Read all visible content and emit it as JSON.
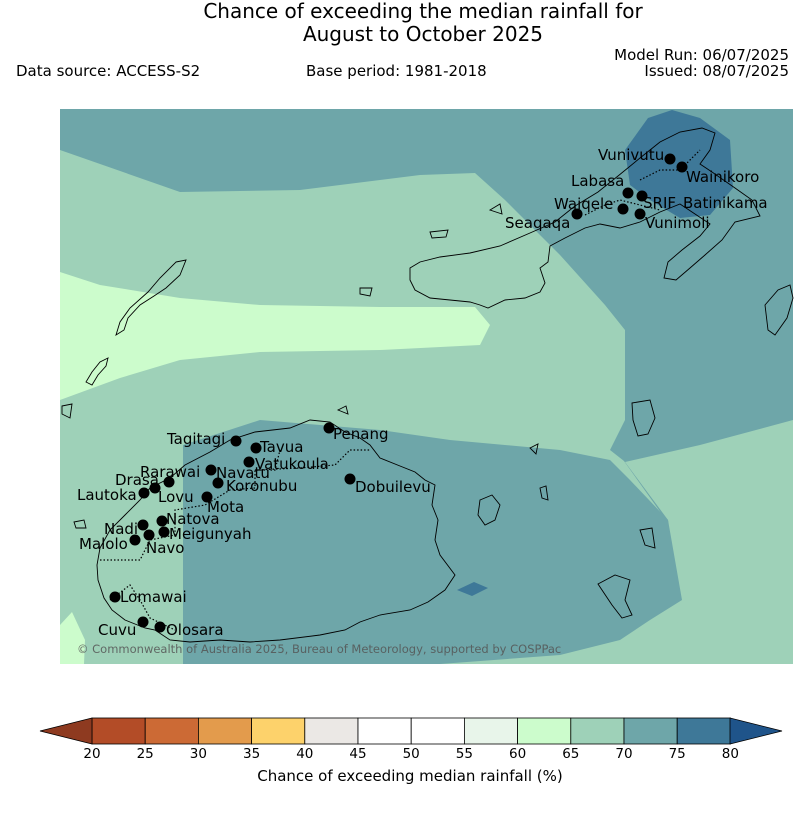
{
  "header": {
    "title_line1": "Chance of exceeding the median rainfall for",
    "title_line2": "August to October 2025",
    "data_source": "Data source: ACCESS-S2",
    "base_period": "Base period: 1981-2018",
    "model_run": "Model Run: 06/07/2025",
    "issued": "Issued: 08/07/2025"
  },
  "map": {
    "copyright": "© Commonwealth of Australia 2025, Bureau of Meteorology, supported by COSPPac",
    "zone_colors": {
      "60-65": "#ccfccc",
      "65-70": "#9ed1b8",
      "70-75": "#6ea6a9",
      "75-80": "#3e7898"
    },
    "stations": [
      "Vunivutu",
      "Wainikoro",
      "Labasa",
      "Waiqele",
      "SRIF",
      "Batinikama",
      "Seaqaqa",
      "Vunimoli",
      "Tagitagi",
      "Tavua",
      "Penang",
      "Vatukoula",
      "Rarawai",
      "Navatu",
      "Drasa",
      "Koronubu",
      "Lautoka",
      "Lovu",
      "Mota",
      "Dobuilevu",
      "Natova",
      "Nadi",
      "Meigunyah",
      "Malolo",
      "Navo",
      "Lomawai",
      "Cuvu",
      "Olosara"
    ]
  },
  "colorbar": {
    "label": "Chance of exceeding median rainfall (%)",
    "ticks": [
      "20",
      "25",
      "30",
      "35",
      "40",
      "45",
      "50",
      "55",
      "60",
      "65",
      "70",
      "75",
      "80"
    ],
    "colors": [
      "#b34c27",
      "#cc6a35",
      "#e39b4c",
      "#fdd26b",
      "#ebe8e5",
      "#ffffff",
      "#ffffff",
      "#e8f5ea",
      "#ccfccc",
      "#9ed1b8",
      "#6ea6a9",
      "#3e7898"
    ],
    "under_color": "#8e3a20",
    "over_color": "#1f548a"
  }
}
